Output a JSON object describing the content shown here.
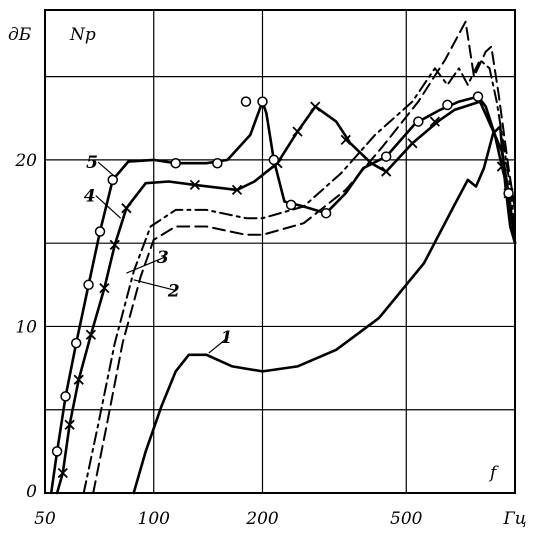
{
  "chart_data": {
    "type": "line",
    "title": "",
    "x_axis": {
      "scale": "log",
      "unit_label": "Гц",
      "symbol": "f",
      "range": [
        50,
        1000
      ],
      "ticks": [
        {
          "value": 50,
          "label": "50"
        },
        {
          "value": 100,
          "label": "100"
        },
        {
          "value": 200,
          "label": "200"
        },
        {
          "value": 500,
          "label": "500"
        }
      ],
      "extra_gridlines": [
        1000
      ]
    },
    "y_axis": {
      "scale": "linear",
      "unit_label": "дБ",
      "symbol": "Np",
      "range": [
        0,
        29
      ],
      "ticks": [
        {
          "value": 0,
          "label": "0"
        },
        {
          "value": 10,
          "label": "10"
        },
        {
          "value": 20,
          "label": "20"
        }
      ],
      "gridlines": [
        5,
        10,
        15,
        20,
        25
      ]
    },
    "grid": true,
    "series": [
      {
        "name": "1",
        "style": "solid",
        "points": [
          [
            88,
            0
          ],
          [
            95,
            2.5
          ],
          [
            105,
            5.2
          ],
          [
            115,
            7.3
          ],
          [
            125,
            8.3
          ],
          [
            140,
            8.3
          ],
          [
            165,
            7.6
          ],
          [
            200,
            7.3
          ],
          [
            250,
            7.6
          ],
          [
            320,
            8.6
          ],
          [
            420,
            10.5
          ],
          [
            560,
            13.8
          ],
          [
            680,
            17.3
          ],
          [
            740,
            18.8
          ],
          [
            780,
            18.4
          ],
          [
            820,
            19.5
          ],
          [
            870,
            21.6
          ],
          [
            910,
            22.0
          ],
          [
            940,
            18.5
          ],
          [
            970,
            16.0
          ],
          [
            1000,
            15.0
          ]
        ]
      },
      {
        "name": "2",
        "style": "dashed",
        "points": [
          [
            68,
            0
          ],
          [
            74,
            4
          ],
          [
            82,
            9
          ],
          [
            92,
            13
          ],
          [
            100,
            15.2
          ],
          [
            115,
            16
          ],
          [
            140,
            16
          ],
          [
            180,
            15.5
          ],
          [
            200,
            15.5
          ],
          [
            260,
            16.2
          ],
          [
            340,
            18.2
          ],
          [
            430,
            20.8
          ],
          [
            540,
            23.5
          ],
          [
            640,
            26
          ],
          [
            730,
            28.3
          ],
          [
            770,
            25
          ],
          [
            830,
            26.5
          ],
          [
            860,
            26.8
          ],
          [
            900,
            24
          ],
          [
            960,
            19.5
          ],
          [
            1000,
            17
          ]
        ]
      },
      {
        "name": "3",
        "style": "dash-dot",
        "points": [
          [
            64,
            0
          ],
          [
            70,
            4
          ],
          [
            78,
            9
          ],
          [
            88,
            13.3
          ],
          [
            98,
            16
          ],
          [
            115,
            17
          ],
          [
            140,
            17
          ],
          [
            180,
            16.5
          ],
          [
            200,
            16.5
          ],
          [
            260,
            17.2
          ],
          [
            330,
            19.2
          ],
          [
            410,
            21.5
          ],
          [
            520,
            23.5
          ],
          [
            600,
            25.5
          ],
          [
            650,
            24.5
          ],
          [
            700,
            25.5
          ],
          [
            740,
            24.5
          ],
          [
            800,
            26
          ],
          [
            850,
            25.5
          ],
          [
            890,
            23.5
          ],
          [
            960,
            19
          ],
          [
            1000,
            16
          ]
        ]
      },
      {
        "name": "4",
        "style": "solid-cross-markers",
        "marker": "x",
        "points": [
          [
            54,
            0
          ],
          [
            56,
            1.2
          ],
          [
            58.5,
            4.1
          ],
          [
            62,
            6.8
          ],
          [
            67,
            9.5
          ],
          [
            73,
            12.3
          ],
          [
            78,
            14.9
          ],
          [
            84,
            17.1
          ],
          [
            95,
            18.6
          ],
          [
            110,
            18.7
          ],
          [
            130,
            18.5
          ],
          [
            170,
            18.2
          ],
          [
            190,
            18.7
          ],
          [
            220,
            19.8
          ],
          [
            250,
            21.7
          ],
          [
            280,
            23.2
          ],
          [
            320,
            22.3
          ],
          [
            350,
            21
          ],
          [
            400,
            19.8
          ],
          [
            440,
            19.3
          ],
          [
            520,
            21
          ],
          [
            620,
            22.4
          ],
          [
            680,
            23
          ],
          [
            800,
            23.5
          ],
          [
            880,
            21.5
          ],
          [
            920,
            19.6
          ],
          [
            960,
            18
          ],
          [
            1000,
            15
          ]
        ],
        "markers": [
          [
            56,
            1.2
          ],
          [
            58.5,
            4.1
          ],
          [
            62,
            6.8
          ],
          [
            67,
            9.5
          ],
          [
            73,
            12.3
          ],
          [
            78,
            14.9
          ],
          [
            84,
            17.1
          ],
          [
            130,
            18.5
          ],
          [
            170,
            18.2
          ],
          [
            220,
            19.8
          ],
          [
            250,
            21.7
          ],
          [
            280,
            23.2
          ],
          [
            340,
            21.2
          ],
          [
            440,
            19.3
          ],
          [
            520,
            21
          ],
          [
            600,
            22.3
          ],
          [
            920,
            19.6
          ],
          [
            960,
            18
          ]
        ]
      },
      {
        "name": "5",
        "style": "solid-circle-markers",
        "marker": "o",
        "points": [
          [
            52,
            0
          ],
          [
            54,
            2.5
          ],
          [
            57,
            5.8
          ],
          [
            61,
            9
          ],
          [
            66,
            12.5
          ],
          [
            71,
            15.7
          ],
          [
            77,
            18.8
          ],
          [
            85,
            19.9
          ],
          [
            100,
            20
          ],
          [
            115,
            19.8
          ],
          [
            140,
            19.8
          ],
          [
            160,
            20
          ],
          [
            185,
            21.5
          ],
          [
            200,
            23.5
          ],
          [
            205,
            22.8
          ],
          [
            215,
            20
          ],
          [
            230,
            17.5
          ],
          [
            260,
            17.2
          ],
          [
            300,
            16.8
          ],
          [
            340,
            18
          ],
          [
            380,
            19.5
          ],
          [
            440,
            20.2
          ],
          [
            530,
            22.2
          ],
          [
            620,
            23
          ],
          [
            700,
            23.5
          ],
          [
            790,
            23.8
          ],
          [
            830,
            23.2
          ],
          [
            880,
            21.5
          ],
          [
            920,
            20.5
          ],
          [
            960,
            18
          ],
          [
            1000,
            15
          ]
        ],
        "markers": [
          [
            54,
            2.5
          ],
          [
            57,
            5.8
          ],
          [
            61,
            9
          ],
          [
            66,
            12.5
          ],
          [
            71,
            15.7
          ],
          [
            77,
            18.8
          ],
          [
            115,
            19.8
          ],
          [
            150,
            19.8
          ],
          [
            180,
            23.5
          ],
          [
            200,
            23.5
          ],
          [
            215,
            20
          ],
          [
            240,
            17.3
          ],
          [
            300,
            16.8
          ],
          [
            440,
            20.2
          ],
          [
            540,
            22.3
          ],
          [
            650,
            23.3
          ],
          [
            790,
            23.8
          ],
          [
            960,
            18
          ]
        ]
      }
    ],
    "annotations": [
      {
        "text": "1",
        "at": [
          165,
          9.0
        ],
        "points_to": [
          142,
          8.4
        ]
      },
      {
        "text": "2",
        "at": [
          118,
          11.8
        ],
        "points_to": [
          88,
          12.8
        ]
      },
      {
        "text": "3",
        "at": [
          110,
          13.8
        ],
        "points_to": [
          84,
          13.2
        ]
      },
      {
        "text": "4",
        "at": [
          64,
          17.5
        ],
        "points_to": [
          81,
          16.5
        ]
      },
      {
        "text": "5",
        "at": [
          65,
          19.5
        ],
        "points_to": [
          78,
          19.0
        ]
      }
    ]
  }
}
